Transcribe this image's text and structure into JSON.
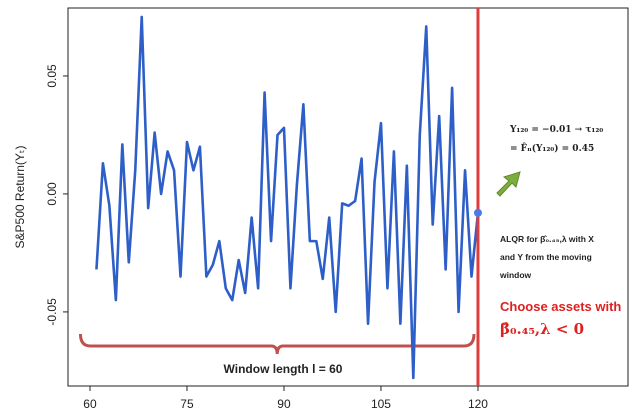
{
  "chart_data": {
    "type": "line",
    "y_label": "S&P500 Return(Yₜ)",
    "x": [
      61,
      62,
      63,
      64,
      65,
      66,
      67,
      68,
      69,
      70,
      71,
      72,
      73,
      74,
      75,
      76,
      77,
      78,
      79,
      80,
      81,
      82,
      83,
      84,
      85,
      86,
      87,
      88,
      89,
      90,
      91,
      92,
      93,
      94,
      95,
      96,
      97,
      98,
      99,
      100,
      101,
      102,
      103,
      104,
      105,
      106,
      107,
      108,
      109,
      110,
      111,
      112,
      113,
      114,
      115,
      116,
      117,
      118,
      119,
      120
    ],
    "series": [
      {
        "color": "#2e5fc8",
        "values": [
          -0.032,
          0.013,
          -0.005,
          -0.045,
          0.021,
          -0.029,
          0.01,
          0.075,
          -0.006,
          0.026,
          0.0,
          0.018,
          0.01,
          -0.035,
          0.022,
          0.01,
          0.02,
          -0.035,
          -0.03,
          -0.02,
          -0.04,
          -0.045,
          -0.028,
          -0.042,
          -0.01,
          -0.04,
          0.043,
          -0.02,
          0.025,
          0.028,
          -0.04,
          0.004,
          0.038,
          -0.02,
          -0.02,
          -0.036,
          -0.01,
          -0.05,
          -0.004,
          -0.005,
          -0.003,
          0.015,
          -0.055,
          0.005,
          0.03,
          -0.04,
          0.018,
          -0.055,
          0.012,
          -0.078,
          0.025,
          0.071,
          -0.013,
          0.033,
          -0.032,
          0.045,
          -0.05,
          0.01,
          -0.035,
          -0.008
        ]
      }
    ],
    "xlim": [
      56.6,
      143.2
    ],
    "ylim": [
      -0.0814,
      0.0788
    ],
    "xticks": [
      60,
      75,
      90,
      105,
      120
    ],
    "yticks": [
      -0.05,
      {
        "value": 0,
        "label": "0.00"
      },
      0.05
    ],
    "grid": false,
    "reference_line": {
      "x": 120,
      "color": "#e03c3c"
    },
    "annotations": {
      "tau_line1": "Y₁₂₀ = −0.01 → τ₁₂₀",
      "tau_line2": "= F̂ₙ(Y₁₂₀) = 0.45",
      "alqr_line1": "ALQR for β̂₀.₄₅,λ with X",
      "alqr_line2": "and Y from the moving",
      "alqr_line3": "window",
      "choose_line1": "Choose assets with",
      "choose_line2": "β̂₀.₄₅,λ < 0",
      "window": "Window length l = 60"
    }
  }
}
